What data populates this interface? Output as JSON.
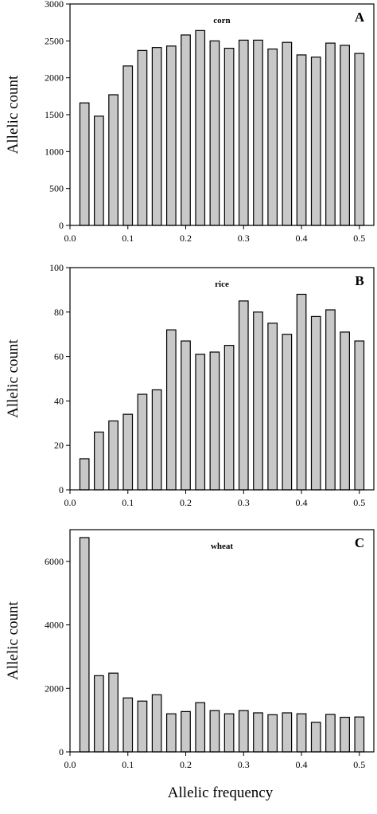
{
  "figure": {
    "xlabel": "Allelic frequency"
  },
  "chart_data": [
    {
      "type": "bar",
      "panel": "A",
      "label": "corn",
      "ylabel": "Allelic count",
      "xlim": [
        0.0,
        0.525
      ],
      "ylim": [
        0,
        3000
      ],
      "x_ticks": [
        0.0,
        0.1,
        0.2,
        0.3,
        0.4,
        0.5
      ],
      "y_ticks": [
        0,
        500,
        1000,
        1500,
        2000,
        2500,
        3000
      ],
      "x": [
        0.025,
        0.05,
        0.075,
        0.1,
        0.125,
        0.15,
        0.175,
        0.2,
        0.225,
        0.25,
        0.275,
        0.3,
        0.325,
        0.35,
        0.375,
        0.4,
        0.425,
        0.45,
        0.475,
        0.5
      ],
      "values": [
        1660,
        1480,
        1770,
        2160,
        2370,
        2410,
        2430,
        2580,
        2640,
        2500,
        2400,
        2510,
        2510,
        2390,
        2480,
        2310,
        2280,
        2470,
        2440,
        2330
      ]
    },
    {
      "type": "bar",
      "panel": "B",
      "label": "rice",
      "ylabel": "Allelic count",
      "xlim": [
        0.0,
        0.525
      ],
      "ylim": [
        0,
        100
      ],
      "x_ticks": [
        0.0,
        0.1,
        0.2,
        0.3,
        0.4,
        0.5
      ],
      "y_ticks": [
        0,
        20,
        40,
        60,
        80,
        100
      ],
      "x": [
        0.025,
        0.05,
        0.075,
        0.1,
        0.125,
        0.15,
        0.175,
        0.2,
        0.225,
        0.25,
        0.275,
        0.3,
        0.325,
        0.35,
        0.375,
        0.4,
        0.425,
        0.45,
        0.475,
        0.5
      ],
      "values": [
        14,
        26,
        31,
        34,
        43,
        45,
        72,
        67,
        61,
        62,
        65,
        85,
        80,
        75,
        70,
        88,
        78,
        81,
        71,
        67
      ]
    },
    {
      "type": "bar",
      "panel": "C",
      "label": "wheat",
      "ylabel": "Allelic count",
      "xlim": [
        0.0,
        0.525
      ],
      "ylim": [
        0,
        7000
      ],
      "x_ticks": [
        0.0,
        0.1,
        0.2,
        0.3,
        0.4,
        0.5
      ],
      "y_ticks": [
        0,
        2000,
        4000,
        6000
      ],
      "x": [
        0.025,
        0.05,
        0.075,
        0.1,
        0.125,
        0.15,
        0.175,
        0.2,
        0.225,
        0.25,
        0.275,
        0.3,
        0.325,
        0.35,
        0.375,
        0.4,
        0.425,
        0.45,
        0.475,
        0.5
      ],
      "values": [
        6750,
        2400,
        2480,
        1700,
        1600,
        1800,
        1200,
        1270,
        1550,
        1300,
        1200,
        1300,
        1230,
        1170,
        1230,
        1200,
        930,
        1180,
        1090,
        1100
      ]
    }
  ]
}
